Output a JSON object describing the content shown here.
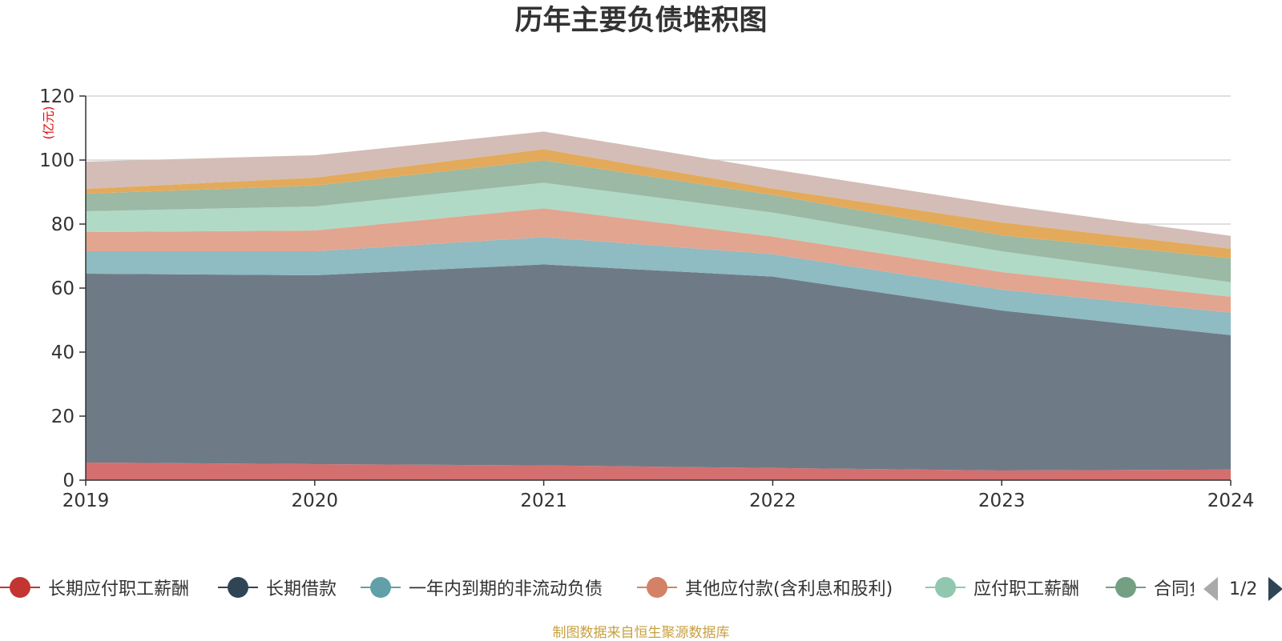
{
  "title": "历年主要负债堆积图",
  "unit": "(亿元)",
  "source": "制图数据来自恒生聚源数据库",
  "pager": {
    "text": "1/2"
  },
  "legend": [
    {
      "name": "长期应付职工薪酬",
      "color": "#c23531"
    },
    {
      "name": "长期借款",
      "color": "#2f4554"
    },
    {
      "name": "一年内到期的非流动负债",
      "color": "#61a0a8"
    },
    {
      "name": "其他应付款(含利息和股利)",
      "color": "#d48265"
    },
    {
      "name": "应付职工薪酬",
      "color": "#91c7ae"
    },
    {
      "name": "合同负债",
      "color": "#749f83"
    }
  ],
  "chart_data": {
    "type": "area",
    "stacked": true,
    "x": [
      "2019",
      "2020",
      "2021",
      "2022",
      "2023",
      "2024"
    ],
    "ylim": [
      0,
      120
    ],
    "yticks": [
      0,
      20,
      40,
      60,
      80,
      100,
      120
    ],
    "ylabel": "(亿元)",
    "grid": true,
    "series": [
      {
        "name": "长期应付职工薪酬",
        "color": "#d46f6f",
        "values": [
          5.5,
          5.0,
          4.6,
          3.8,
          3.0,
          3.3
        ]
      },
      {
        "name": "长期借款",
        "color": "#6e7b86",
        "values": [
          59.0,
          59.0,
          62.8,
          59.8,
          50.0,
          42.0
        ]
      },
      {
        "name": "一年内到期的非流动负债",
        "color": "#8fbbc2",
        "values": [
          7.0,
          7.5,
          8.5,
          7.0,
          6.5,
          7.0
        ]
      },
      {
        "name": "其他应付款(含利息和股利)",
        "color": "#e2a590",
        "values": [
          6.0,
          6.5,
          9.0,
          5.5,
          5.5,
          5.0
        ]
      },
      {
        "name": "应付职工薪酬",
        "color": "#b0dac6",
        "values": [
          6.5,
          7.5,
          8.0,
          7.5,
          6.5,
          4.5
        ]
      },
      {
        "name": "合同负债",
        "color": "#9bb9a4",
        "values": [
          5.5,
          6.5,
          7.0,
          5.5,
          5.0,
          7.5
        ]
      },
      {
        "color": "#e3aa5c",
        "values": [
          1.5,
          2.5,
          3.5,
          2.0,
          4.0,
          3.0
        ]
      },
      {
        "color": "#d3bdb6",
        "values": [
          8.5,
          7.0,
          5.5,
          6.0,
          5.5,
          4.0
        ]
      }
    ]
  }
}
